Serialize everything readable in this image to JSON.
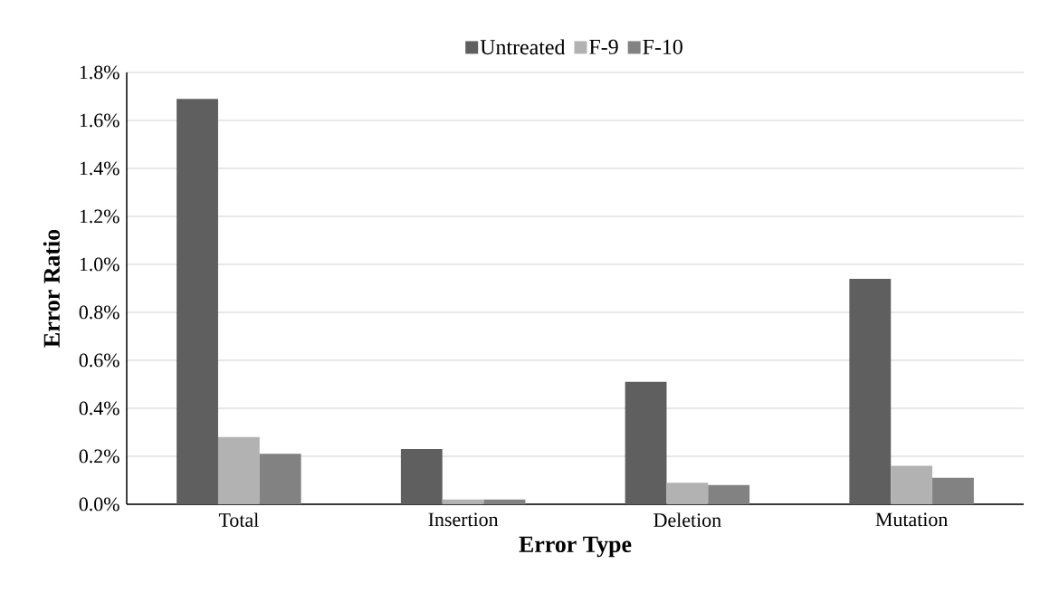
{
  "chart_data": {
    "type": "bar",
    "xlabel": "Error Type",
    "ylabel": "Error Ratio",
    "categories": [
      "Total",
      "Insertion",
      "Deletion",
      "Mutation"
    ],
    "series": [
      {
        "name": "Untreated",
        "color": "#5f5f5f",
        "values": [
          1.69,
          0.23,
          0.51,
          0.94
        ]
      },
      {
        "name": "F-9",
        "color": "#b2b2b2",
        "values": [
          0.28,
          0.02,
          0.09,
          0.16
        ]
      },
      {
        "name": "F-10",
        "color": "#828282",
        "values": [
          0.21,
          0.02,
          0.08,
          0.11
        ]
      }
    ],
    "ylim": [
      0,
      1.8
    ],
    "yticks": [
      {
        "value": 0,
        "label": "0.0%"
      },
      {
        "value": 0.2,
        "label": "0.2%"
      },
      {
        "value": 0.4,
        "label": "0.4%"
      },
      {
        "value": 0.6,
        "label": "0.6%"
      },
      {
        "value": 0.8,
        "label": "0.8%"
      },
      {
        "value": 1.0,
        "label": "1.0%"
      },
      {
        "value": 1.2,
        "label": "1.2%"
      },
      {
        "value": 1.4,
        "label": "1.4%"
      },
      {
        "value": 1.6,
        "label": "1.6%"
      },
      {
        "value": 1.8,
        "label": "1.8%"
      }
    ],
    "grid": "y",
    "legend": "top"
  }
}
